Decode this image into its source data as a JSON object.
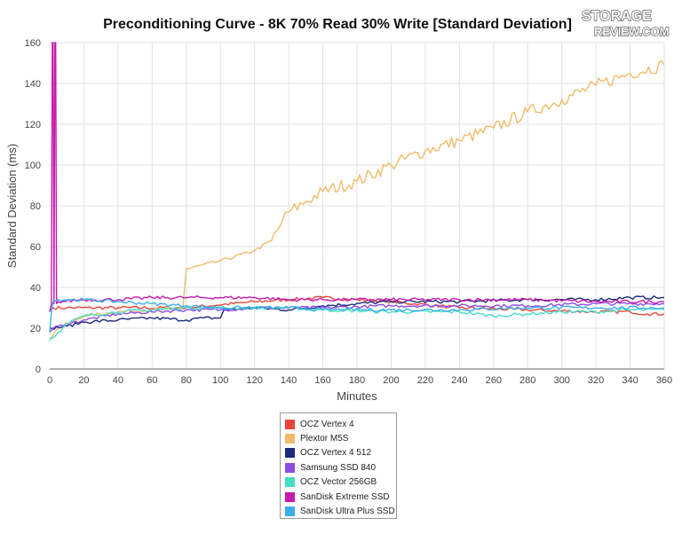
{
  "logo": {
    "line1": "STORAGE",
    "line2": "REVIEW.COM"
  },
  "chart_data": {
    "type": "line",
    "title": "Preconditioning Curve - 8K 70% Read 30% Write [Standard Deviation]",
    "xlabel": "Minutes",
    "ylabel": "Standard Deviation (ms)",
    "xlim": [
      0,
      360
    ],
    "ylim": [
      0,
      160
    ],
    "xticks": [
      0,
      20,
      40,
      60,
      80,
      100,
      120,
      140,
      160,
      180,
      200,
      220,
      240,
      260,
      280,
      300,
      320,
      340,
      360
    ],
    "yticks": [
      0,
      20,
      40,
      60,
      80,
      100,
      120,
      140,
      160
    ],
    "grid": true,
    "legend_position": "bottom-center",
    "series": [
      {
        "name": "OCZ Vertex 4",
        "color": "#e8453c",
        "x": [
          0,
          2,
          10,
          40,
          80,
          120,
          160,
          200,
          240,
          280,
          320,
          340,
          350,
          360
        ],
        "y": [
          29,
          30,
          30,
          30,
          30,
          33,
          35,
          33,
          30,
          29,
          28,
          28,
          27,
          27
        ]
      },
      {
        "name": "Plextor M5S",
        "color": "#f0bb6a",
        "x": [
          0,
          5,
          20,
          40,
          60,
          78,
          80,
          100,
          120,
          130,
          136,
          140,
          150,
          160,
          180,
          200,
          220,
          240,
          260,
          280,
          300,
          320,
          340,
          360
        ],
        "y": [
          15,
          20,
          26,
          28,
          29,
          30,
          49,
          53,
          58,
          63,
          72,
          77,
          82,
          87,
          92,
          100,
          107,
          112,
          118,
          126,
          132,
          139,
          145,
          149
        ]
      },
      {
        "name": "OCZ Vertex 4 512",
        "color": "#1b2a7e",
        "x": [
          0,
          1,
          10,
          20,
          40,
          60,
          80,
          90,
          100,
          102,
          120,
          140,
          160,
          200,
          240,
          280,
          320,
          340,
          360
        ],
        "y": [
          20,
          20,
          21,
          23,
          24,
          25,
          24,
          25,
          25,
          29,
          30,
          29,
          31,
          33,
          33,
          34,
          34,
          35,
          35
        ]
      },
      {
        "name": "Samsung SSD 840",
        "color": "#8e4ce6",
        "x": [
          0,
          2,
          10,
          20,
          40,
          60,
          80,
          100,
          120,
          140,
          160,
          200,
          240,
          280,
          320,
          360
        ],
        "y": [
          18,
          20,
          22,
          24,
          27,
          28,
          29,
          29,
          30,
          30,
          30,
          31,
          31,
          31,
          32,
          32
        ]
      },
      {
        "name": "OCZ Vector 256GB",
        "color": "#45ddc8",
        "x": [
          0,
          1,
          5,
          10,
          20,
          40,
          60,
          80,
          100,
          120,
          140,
          160,
          200,
          240,
          260,
          280,
          300,
          320,
          340,
          360
        ],
        "y": [
          14,
          15,
          18,
          22,
          26,
          28,
          29,
          30,
          30,
          30,
          30,
          29,
          28,
          28,
          26,
          27,
          28,
          28,
          29,
          29
        ]
      },
      {
        "name": "SanDisk Extreme SSD",
        "color": "#c61ab0",
        "x": [
          0,
          1,
          1.5,
          2,
          2.5,
          3,
          3.5,
          4,
          5,
          20,
          40,
          60,
          80,
          100,
          120,
          140,
          160,
          180,
          200,
          240,
          280,
          320,
          360
        ],
        "y": [
          28,
          32,
          160,
          160,
          32,
          160,
          160,
          32,
          33,
          34,
          34,
          35,
          35,
          35,
          35,
          34,
          34,
          34,
          34,
          34,
          34,
          33,
          33
        ]
      },
      {
        "name": "SanDisk Ultra Plus SSD",
        "color": "#3aaee8",
        "x": [
          0,
          1,
          2,
          5,
          20,
          40,
          60,
          80,
          100,
          120,
          140,
          160,
          200,
          240,
          280,
          320,
          360
        ],
        "y": [
          18,
          28,
          33,
          34,
          34,
          33,
          32,
          31,
          30,
          30,
          30,
          29,
          29,
          29,
          30,
          30,
          30
        ]
      }
    ]
  }
}
